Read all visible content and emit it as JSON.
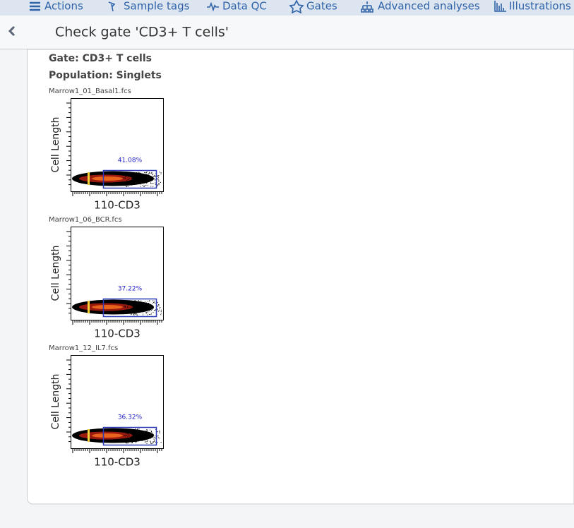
{
  "nav": [
    "Actions",
    "Sample tags",
    "Data QC",
    "Gates",
    "Advanced analyses",
    "Illustrations"
  ],
  "header": {
    "title": "Check gate 'CD3+ T cells'"
  },
  "gate": "Gate: CD3+ T cells",
  "population": "Population: Singlets",
  "plots": [
    {
      "file": "Marrow1_01_Basal1.fcs",
      "y_label": "Cell Length",
      "x_label": "110-CD3",
      "percent": "41.08%"
    },
    {
      "file": "Marrow1_06_BCR.fcs",
      "y_label": "Cell Length",
      "x_label": "110-CD3",
      "percent": "37.22%"
    },
    {
      "file": "Marrow1_12_IL7.fcs",
      "y_label": "Cell Length",
      "x_label": "110-CD3",
      "percent": "36.32%"
    }
  ]
}
